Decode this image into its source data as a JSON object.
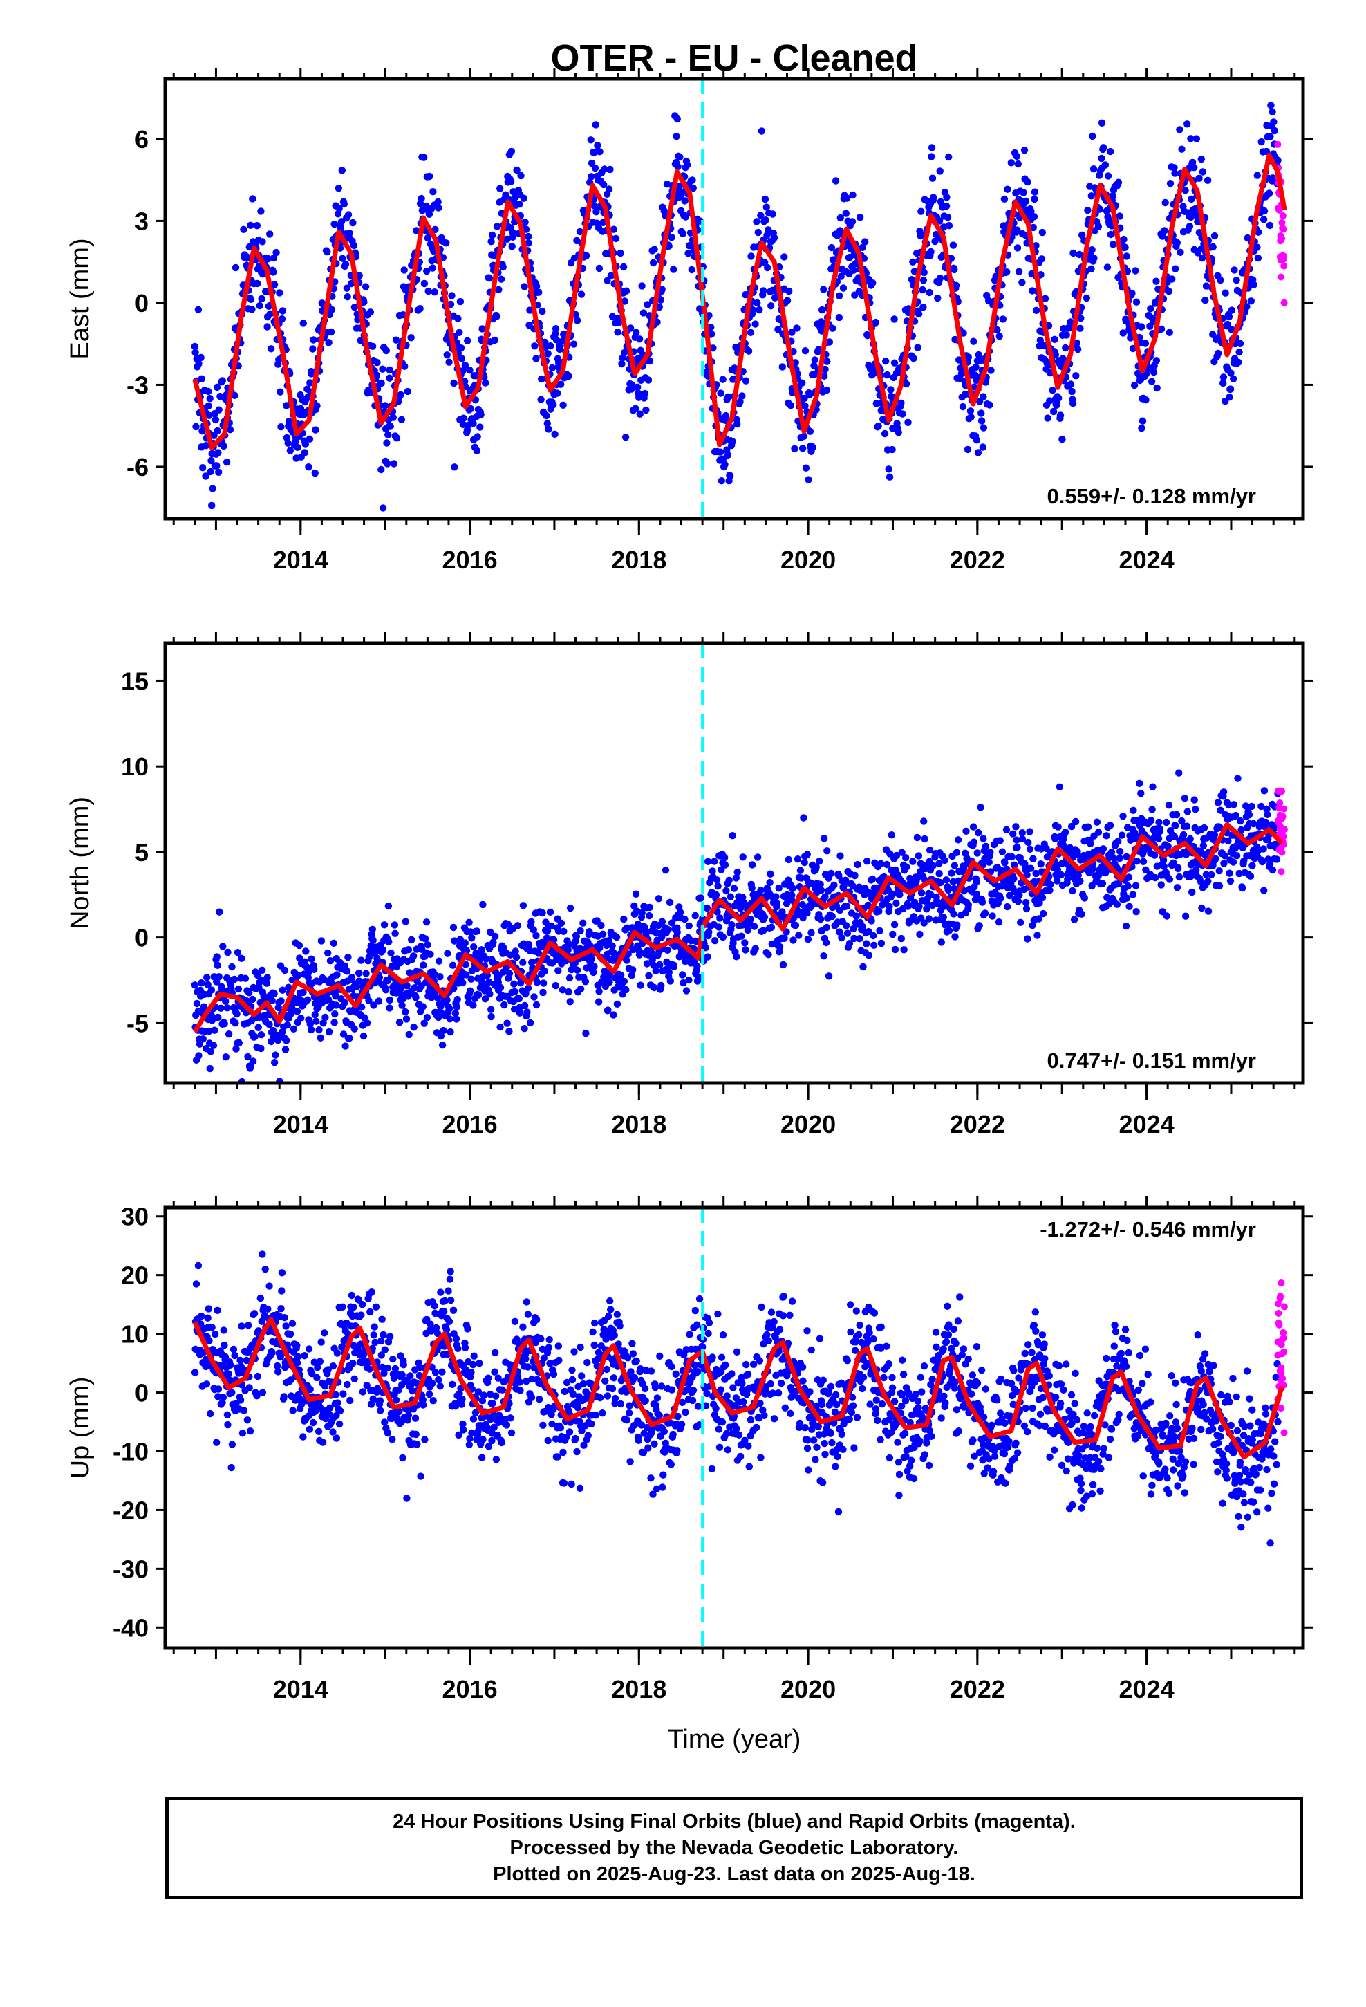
{
  "colors": {
    "final_points": "#0000ff",
    "rapid_points": "#ff00ff",
    "model_line": "#ff0000",
    "event_line": "#00ffff",
    "axis": "#000000"
  },
  "chart_data": [
    {
      "type": "scatter",
      "title": "OTER  - EU - Cleaned",
      "ylabel": "East (mm)",
      "xlabel": "",
      "xlim": [
        2012.4,
        2025.85
      ],
      "ylim": [
        -7.9,
        8.2
      ],
      "yticks": [
        6,
        3,
        0,
        -3,
        -6
      ],
      "ytick_labels": [
        "6",
        "3",
        "0",
        "-3",
        "-6"
      ],
      "xticks": [
        2014,
        2016,
        2018,
        2020,
        2022,
        2024
      ],
      "xtick_labels": [
        "2014",
        "2016",
        "2018",
        "2020",
        "2022",
        "2024"
      ],
      "event_line_x": 2018.75,
      "rate_label": "0.559+/- 0.128 mm/yr",
      "data_span": [
        2012.75,
        2025.55
      ],
      "rapid_span": [
        2025.55,
        2025.63
      ],
      "model_points": [
        [
          2012.75,
          -2.8
        ],
        [
          2012.95,
          -5.3
        ],
        [
          2013.1,
          -4.8
        ],
        [
          2013.3,
          -0.5
        ],
        [
          2013.45,
          2.0
        ],
        [
          2013.6,
          1.2
        ],
        [
          2013.8,
          -2.0
        ],
        [
          2013.95,
          -4.8
        ],
        [
          2014.1,
          -4.3
        ],
        [
          2014.3,
          -0.3
        ],
        [
          2014.45,
          2.6
        ],
        [
          2014.6,
          1.8
        ],
        [
          2014.8,
          -2.0
        ],
        [
          2014.95,
          -4.4
        ],
        [
          2015.1,
          -3.7
        ],
        [
          2015.3,
          0.3
        ],
        [
          2015.45,
          3.1
        ],
        [
          2015.6,
          2.3
        ],
        [
          2015.8,
          -1.5
        ],
        [
          2015.95,
          -3.8
        ],
        [
          2016.1,
          -3.1
        ],
        [
          2016.3,
          0.9
        ],
        [
          2016.45,
          3.7
        ],
        [
          2016.6,
          2.9
        ],
        [
          2016.8,
          -1.0
        ],
        [
          2016.95,
          -3.2
        ],
        [
          2017.1,
          -2.5
        ],
        [
          2017.3,
          1.5
        ],
        [
          2017.45,
          4.3
        ],
        [
          2017.6,
          3.5
        ],
        [
          2017.8,
          -0.4
        ],
        [
          2017.95,
          -2.6
        ],
        [
          2018.1,
          -1.9
        ],
        [
          2018.3,
          2.1
        ],
        [
          2018.45,
          4.8
        ],
        [
          2018.6,
          4.0
        ],
        [
          2018.8,
          -1.0
        ],
        [
          2018.95,
          -5.2
        ],
        [
          2019.1,
          -4.2
        ],
        [
          2019.3,
          0.0
        ],
        [
          2019.45,
          2.2
        ],
        [
          2019.6,
          1.5
        ],
        [
          2019.8,
          -2.2
        ],
        [
          2019.95,
          -4.7
        ],
        [
          2020.1,
          -3.4
        ],
        [
          2020.3,
          0.8
        ],
        [
          2020.45,
          2.7
        ],
        [
          2020.6,
          1.8
        ],
        [
          2020.8,
          -2.0
        ],
        [
          2020.95,
          -4.3
        ],
        [
          2021.1,
          -3.0
        ],
        [
          2021.3,
          1.0
        ],
        [
          2021.45,
          3.2
        ],
        [
          2021.6,
          2.4
        ],
        [
          2021.8,
          -1.5
        ],
        [
          2021.95,
          -3.7
        ],
        [
          2022.1,
          -2.4
        ],
        [
          2022.3,
          1.6
        ],
        [
          2022.45,
          3.7
        ],
        [
          2022.6,
          2.9
        ],
        [
          2022.8,
          -0.9
        ],
        [
          2022.95,
          -3.1
        ],
        [
          2023.1,
          -1.9
        ],
        [
          2023.3,
          2.2
        ],
        [
          2023.45,
          4.3
        ],
        [
          2023.6,
          3.5
        ],
        [
          2023.8,
          -0.3
        ],
        [
          2023.95,
          -2.5
        ],
        [
          2024.1,
          -1.3
        ],
        [
          2024.3,
          2.8
        ],
        [
          2024.45,
          4.9
        ],
        [
          2024.6,
          4.1
        ],
        [
          2024.8,
          0.3
        ],
        [
          2024.95,
          -1.9
        ],
        [
          2025.1,
          -0.7
        ],
        [
          2025.3,
          3.3
        ],
        [
          2025.45,
          5.4
        ],
        [
          2025.55,
          4.8
        ],
        [
          2025.63,
          3.4
        ]
      ]
    },
    {
      "type": "scatter",
      "title": "",
      "ylabel": "North (mm)",
      "xlabel": "",
      "xlim": [
        2012.4,
        2025.85
      ],
      "ylim": [
        -8.5,
        17.2
      ],
      "yticks": [
        15,
        10,
        5,
        0,
        -5
      ],
      "ytick_labels": [
        "15",
        "10",
        "5",
        "0",
        "-5"
      ],
      "xticks": [
        2014,
        2016,
        2018,
        2020,
        2022,
        2024
      ],
      "xtick_labels": [
        "2014",
        "2016",
        "2018",
        "2020",
        "2022",
        "2024"
      ],
      "event_line_x": 2018.75,
      "rate_label": "0.747+/- 0.151 mm/yr",
      "data_span": [
        2012.75,
        2025.55
      ],
      "rapid_span": [
        2025.55,
        2025.63
      ],
      "model_points": [
        [
          2012.75,
          -5.5
        ],
        [
          2012.9,
          -4.3
        ],
        [
          2013.05,
          -3.3
        ],
        [
          2013.25,
          -3.5
        ],
        [
          2013.45,
          -4.5
        ],
        [
          2013.6,
          -3.8
        ],
        [
          2013.75,
          -4.9
        ],
        [
          2013.95,
          -2.6
        ],
        [
          2014.2,
          -3.3
        ],
        [
          2014.45,
          -2.8
        ],
        [
          2014.65,
          -4.0
        ],
        [
          2014.95,
          -1.6
        ],
        [
          2015.2,
          -2.6
        ],
        [
          2015.45,
          -2.1
        ],
        [
          2015.7,
          -3.4
        ],
        [
          2015.95,
          -1.0
        ],
        [
          2016.2,
          -2.0
        ],
        [
          2016.45,
          -1.4
        ],
        [
          2016.7,
          -2.7
        ],
        [
          2016.95,
          -0.3
        ],
        [
          2017.2,
          -1.3
        ],
        [
          2017.45,
          -0.7
        ],
        [
          2017.7,
          -2.0
        ],
        [
          2017.95,
          0.3
        ],
        [
          2018.2,
          -0.6
        ],
        [
          2018.45,
          -0.1
        ],
        [
          2018.7,
          -1.2
        ],
        [
          2018.75,
          0.6
        ],
        [
          2018.95,
          2.2
        ],
        [
          2019.2,
          1.0
        ],
        [
          2019.45,
          2.3
        ],
        [
          2019.7,
          0.5
        ],
        [
          2019.95,
          2.9
        ],
        [
          2020.2,
          1.8
        ],
        [
          2020.45,
          2.6
        ],
        [
          2020.7,
          1.2
        ],
        [
          2020.95,
          3.5
        ],
        [
          2021.2,
          2.6
        ],
        [
          2021.45,
          3.3
        ],
        [
          2021.7,
          1.9
        ],
        [
          2021.95,
          4.4
        ],
        [
          2022.2,
          3.3
        ],
        [
          2022.45,
          4.0
        ],
        [
          2022.7,
          2.6
        ],
        [
          2022.95,
          5.2
        ],
        [
          2023.2,
          4.0
        ],
        [
          2023.45,
          4.8
        ],
        [
          2023.7,
          3.4
        ],
        [
          2023.95,
          5.9
        ],
        [
          2024.2,
          4.8
        ],
        [
          2024.45,
          5.5
        ],
        [
          2024.7,
          4.2
        ],
        [
          2024.95,
          6.6
        ],
        [
          2025.2,
          5.5
        ],
        [
          2025.45,
          6.3
        ],
        [
          2025.6,
          5.5
        ]
      ]
    },
    {
      "type": "scatter",
      "title": "",
      "ylabel": "Up (mm)",
      "xlabel": "Time (year)",
      "xlim": [
        2012.4,
        2025.85
      ],
      "ylim": [
        -43.5,
        31.5
      ],
      "yticks": [
        30,
        20,
        10,
        0,
        -10,
        -20,
        -30,
        -40
      ],
      "ytick_labels": [
        "30",
        "20",
        "10",
        "0",
        "-10",
        "-20",
        "-30",
        "-40"
      ],
      "xticks": [
        2014,
        2016,
        2018,
        2020,
        2022,
        2024
      ],
      "xtick_labels": [
        "2014",
        "2016",
        "2018",
        "2020",
        "2022",
        "2024"
      ],
      "event_line_x": 2018.75,
      "rate_label": "-1.272+/- 0.546 mm/yr",
      "data_span": [
        2012.75,
        2025.55
      ],
      "rapid_span": [
        2025.55,
        2025.63
      ],
      "model_points": [
        [
          2012.75,
          12.0
        ],
        [
          2012.95,
          5.5
        ],
        [
          2013.15,
          0.8
        ],
        [
          2013.35,
          2.5
        ],
        [
          2013.55,
          10.0
        ],
        [
          2013.65,
          12.5
        ],
        [
          2013.85,
          6.0
        ],
        [
          2014.1,
          -1.2
        ],
        [
          2014.35,
          -0.5
        ],
        [
          2014.6,
          9.5
        ],
        [
          2014.7,
          11.0
        ],
        [
          2014.9,
          3.5
        ],
        [
          2015.1,
          -2.5
        ],
        [
          2015.35,
          -1.8
        ],
        [
          2015.6,
          8.5
        ],
        [
          2015.7,
          10.0
        ],
        [
          2015.9,
          2.0
        ],
        [
          2016.15,
          -3.5
        ],
        [
          2016.4,
          -2.5
        ],
        [
          2016.6,
          7.5
        ],
        [
          2016.7,
          9.0
        ],
        [
          2016.9,
          1.5
        ],
        [
          2017.15,
          -4.5
        ],
        [
          2017.4,
          -3.0
        ],
        [
          2017.6,
          6.5
        ],
        [
          2017.7,
          8.0
        ],
        [
          2017.9,
          0.5
        ],
        [
          2018.15,
          -5.5
        ],
        [
          2018.4,
          -4.0
        ],
        [
          2018.6,
          5.5
        ],
        [
          2018.75,
          7.0
        ],
        [
          2018.9,
          0.0
        ],
        [
          2019.1,
          -3.5
        ],
        [
          2019.35,
          -2.5
        ],
        [
          2019.6,
          7.5
        ],
        [
          2019.7,
          8.5
        ],
        [
          2019.9,
          0.5
        ],
        [
          2020.15,
          -5.0
        ],
        [
          2020.4,
          -4.0
        ],
        [
          2020.6,
          6.5
        ],
        [
          2020.7,
          7.5
        ],
        [
          2020.9,
          -0.5
        ],
        [
          2021.15,
          -6.0
        ],
        [
          2021.4,
          -5.5
        ],
        [
          2021.6,
          5.5
        ],
        [
          2021.7,
          6.0
        ],
        [
          2021.9,
          -2.0
        ],
        [
          2022.15,
          -7.5
        ],
        [
          2022.4,
          -6.5
        ],
        [
          2022.6,
          4.0
        ],
        [
          2022.7,
          5.0
        ],
        [
          2022.9,
          -3.0
        ],
        [
          2023.15,
          -8.5
        ],
        [
          2023.4,
          -8.0
        ],
        [
          2023.6,
          2.5
        ],
        [
          2023.7,
          3.5
        ],
        [
          2023.9,
          -4.0
        ],
        [
          2024.15,
          -9.5
        ],
        [
          2024.4,
          -9.0
        ],
        [
          2024.6,
          1.5
        ],
        [
          2024.7,
          2.5
        ],
        [
          2024.9,
          -5.0
        ],
        [
          2025.15,
          -11.0
        ],
        [
          2025.4,
          -8.5
        ],
        [
          2025.6,
          1.0
        ]
      ]
    }
  ],
  "caption": {
    "line1": "24 Hour Positions Using Final Orbits (blue) and Rapid Orbits (magenta).",
    "line2": "Processed by the Nevada Geodetic Laboratory.",
    "line3": "Plotted on 2025-Aug-23. Last data on 2025-Aug-18."
  }
}
